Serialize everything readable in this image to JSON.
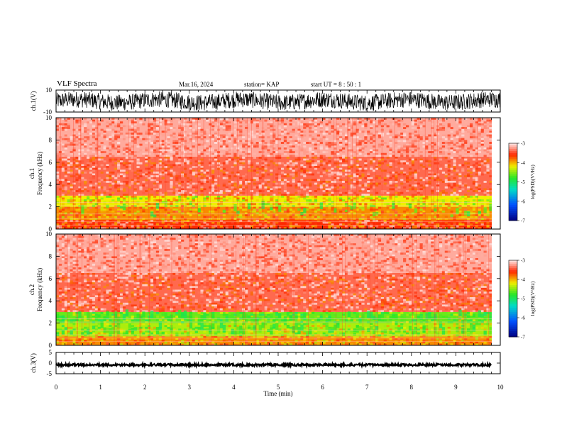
{
  "header": {
    "title": "VLF Spectra",
    "date": "Mar.16, 2024",
    "station": "station= KAP",
    "start": "start UT =  8 : 50 : 1"
  },
  "chart_data": [
    {
      "type": "line",
      "panel": "waveform-ch1",
      "ylabel": "ch.1(V)",
      "ylim": [
        -10,
        10
      ],
      "yticks": [
        "10",
        "-10"
      ],
      "xlim": [
        0,
        10
      ],
      "description_values": "dense oscillating waveform, amplitude mostly between -8 and +8 V"
    },
    {
      "type": "heatmap",
      "panel": "spectrogram-ch1",
      "ylabel": "ch.1\nFrequency (kHz)",
      "ylim": [
        0,
        10
      ],
      "yticks": [
        "0",
        "2",
        "4",
        "6",
        "8",
        "10"
      ],
      "xlim": [
        0,
        10
      ],
      "colorbar": {
        "label": "log(PSD)(V²/Hz)",
        "range": [
          -7,
          -3
        ],
        "ticks": [
          "-3",
          "-4",
          "-5",
          "-6",
          "-7"
        ]
      },
      "bands": [
        {
          "freq_khz": [
            0,
            0.8
          ],
          "level": -3.6
        },
        {
          "freq_khz": [
            0.8,
            2.0
          ],
          "level": -3.9
        },
        {
          "freq_khz": [
            2.0,
            3.0
          ],
          "level": -4.2
        },
        {
          "freq_khz": [
            3.0,
            6.5
          ],
          "level": -3.4
        },
        {
          "freq_khz": [
            6.5,
            10
          ],
          "level": -3.2
        }
      ]
    },
    {
      "type": "heatmap",
      "panel": "spectrogram-ch2",
      "ylabel": "ch.2\nFrequency (kHz)",
      "ylim": [
        0,
        10
      ],
      "yticks": [
        "0",
        "2",
        "4",
        "6",
        "8",
        "10"
      ],
      "xlim": [
        0,
        10
      ],
      "colorbar": {
        "label": "log(PSD)(V²/Hz)",
        "range": [
          -7,
          -3
        ],
        "ticks": [
          "-3",
          "-4",
          "-5",
          "-6",
          "-7"
        ]
      },
      "bands": [
        {
          "freq_khz": [
            0,
            0.8
          ],
          "level": -3.9
        },
        {
          "freq_khz": [
            0.8,
            2.0
          ],
          "level": -4.4
        },
        {
          "freq_khz": [
            2.0,
            3.0
          ],
          "level": -4.6
        },
        {
          "freq_khz": [
            3.0,
            6.5
          ],
          "level": -3.4
        },
        {
          "freq_khz": [
            6.5,
            10
          ],
          "level": -3.2
        }
      ]
    },
    {
      "type": "line",
      "panel": "waveform-ch3",
      "ylabel": "ch.3(V)",
      "ylim": [
        -5,
        5
      ],
      "yticks": [
        "5",
        "0",
        "-5"
      ],
      "xlim": [
        0,
        10
      ],
      "xlabel": "Time (min)",
      "xticks": [
        "0",
        "1",
        "2",
        "3",
        "4",
        "5",
        "6",
        "7",
        "8",
        "9",
        "10"
      ],
      "level_v": 0
    }
  ]
}
